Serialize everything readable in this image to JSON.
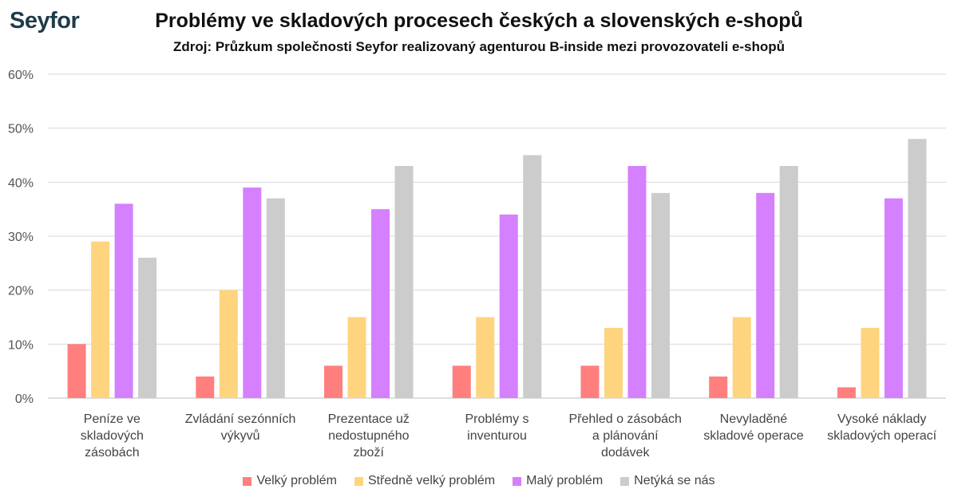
{
  "header": {
    "logo": "Seyfor",
    "title": "Problémy ve skladových procesech českých a slovenských e-shopů",
    "subtitle": "Zdroj: Průzkum společnosti Seyfor realizovaný agenturou B-inside mezi provozovateli e-shopů"
  },
  "chart_data": {
    "type": "bar",
    "title": "Problémy ve skladových procesech českých a slovenských e-shopů",
    "subtitle": "Zdroj: Průzkum společnosti Seyfor realizovaný agenturou B-inside mezi provozovateli e-shopů",
    "xlabel": "",
    "ylabel": "",
    "ylim": [
      0,
      60
    ],
    "yticks": [
      "0%",
      "10%",
      "20%",
      "30%",
      "40%",
      "50%",
      "60%"
    ],
    "grid": true,
    "legend_position": "bottom",
    "categories": [
      [
        "Peníze ve",
        "skladových",
        "zásobách"
      ],
      [
        "Zvládání sezónních",
        "výkyvů"
      ],
      [
        "Prezentace už",
        "nedostupného",
        "zboží"
      ],
      [
        "Problémy s",
        "inventurou"
      ],
      [
        "Přehled o zásobách",
        "a plánování",
        "dodávek"
      ],
      [
        "Nevyladěné",
        "skladové operace"
      ],
      [
        "Vysoké náklady",
        "skladových operací"
      ]
    ],
    "series": [
      {
        "name": "Velký problém",
        "color": "#ff7f7f",
        "values": [
          10,
          4,
          6,
          6,
          6,
          4,
          2
        ]
      },
      {
        "name": "Středně velký problém",
        "color": "#ffd47f",
        "values": [
          29,
          20,
          15,
          15,
          13,
          15,
          13
        ]
      },
      {
        "name": "Malý problém",
        "color": "#d580ff",
        "values": [
          36,
          39,
          35,
          34,
          43,
          38,
          37
        ]
      },
      {
        "name": "Netýká se nás",
        "color": "#cccccc",
        "values": [
          26,
          37,
          43,
          45,
          38,
          43,
          48
        ]
      }
    ]
  }
}
